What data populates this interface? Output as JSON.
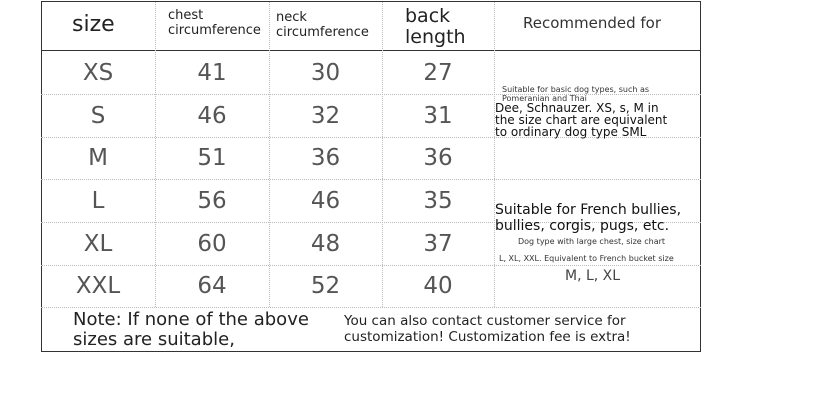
{
  "headers": [
    "size",
    "chest circumference",
    "neck circumference",
    "back length",
    "Recommended for"
  ],
  "rows": [
    [
      "XS",
      "41",
      "30",
      "27"
    ],
    [
      "S",
      "46",
      "32",
      "31"
    ],
    [
      "M",
      "51",
      "36",
      "36"
    ],
    [
      "L",
      "56",
      "46",
      "35"
    ],
    [
      "XL",
      "60",
      "48",
      "37"
    ],
    [
      "XXL",
      "64",
      "52",
      "40"
    ]
  ],
  "rec_small": {
    "line1": "Suitable for basic dog types, such as",
    "line2": "Pomeranian and Thai",
    "main": "Dee, Schnauzer. XS, s, M in the size chart are equivalent to ordinary dog type SML"
  },
  "rec_large": {
    "main": "Suitable for French bullies, bullies, corgis, pugs, etc.",
    "line1": "Dog type with large chest, size chart",
    "line2": "L, XL, XXL. Equivalent to French bucket size",
    "sizes": "M,  L,  XL"
  },
  "note": {
    "left": "Note: If none of the above sizes are suitable,",
    "right": "You can also contact customer service for customization! Customization fee is extra!"
  }
}
